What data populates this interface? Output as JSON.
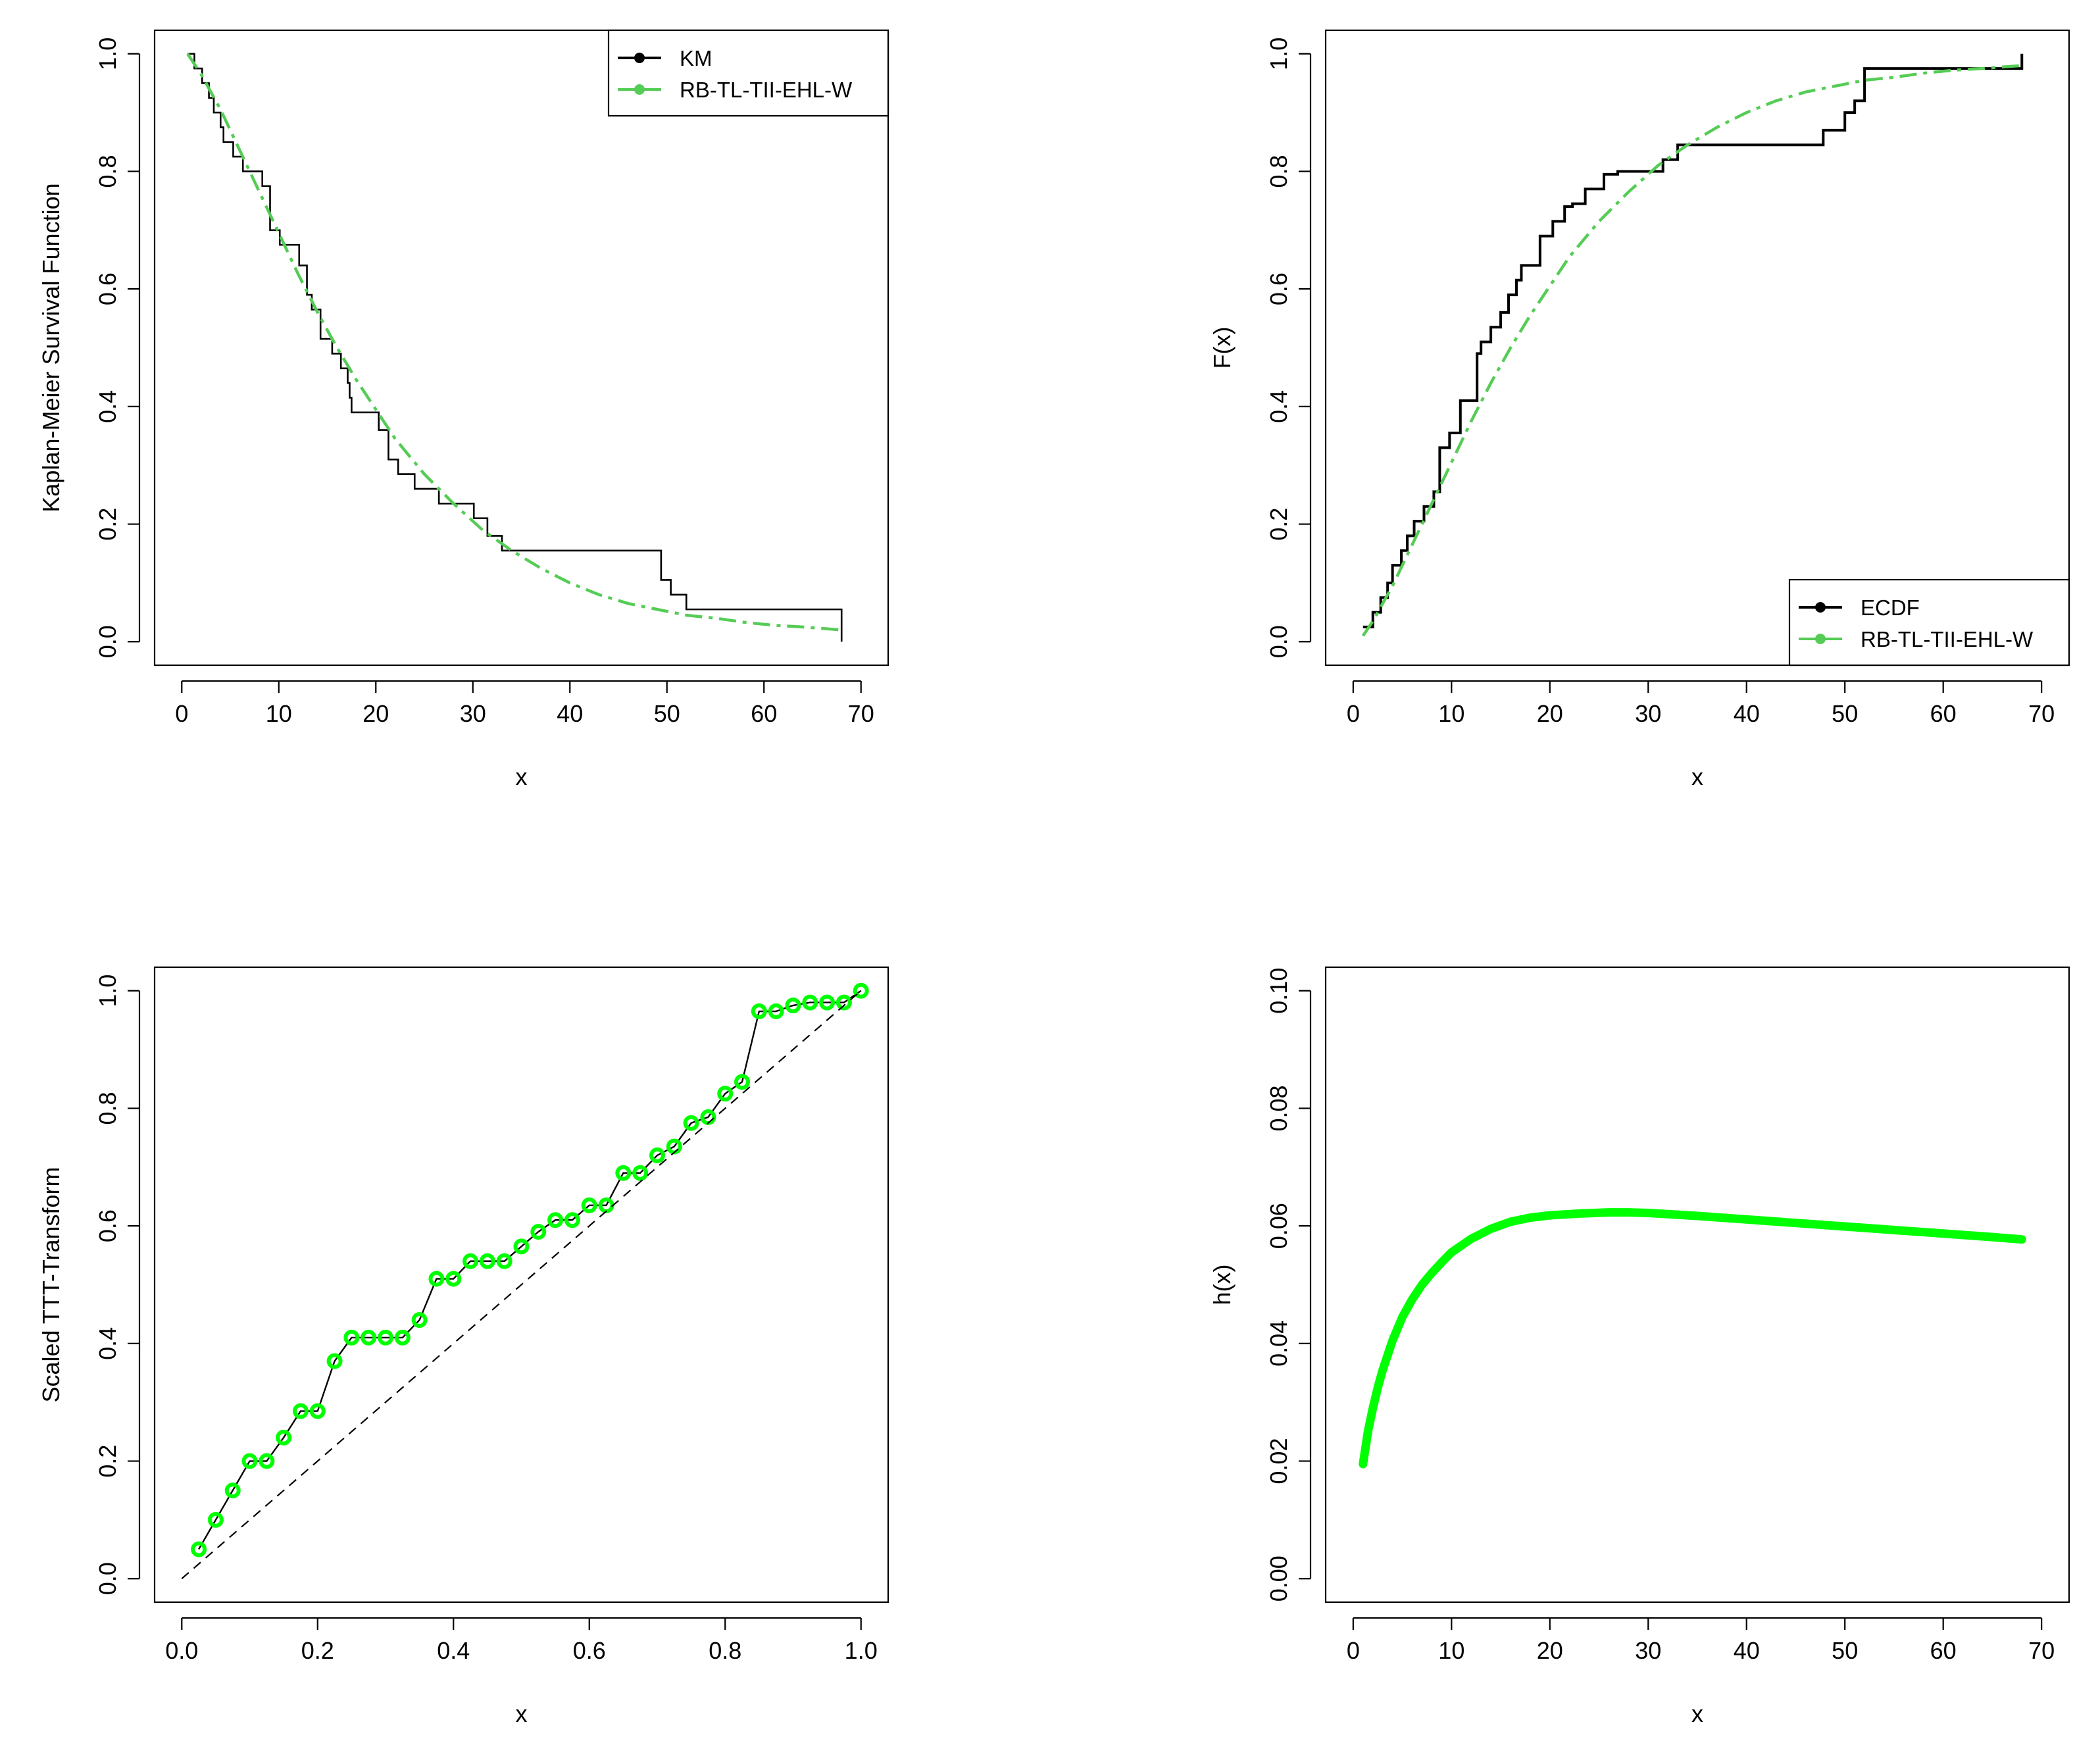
{
  "colors": {
    "black": "#000000",
    "model": "#55cc55",
    "bright_green": "#00ff00"
  },
  "chart_data": [
    {
      "id": "km",
      "type": "line",
      "xlabel": "x",
      "ylabel": "Kaplan-Meier Survival Function",
      "xlim": [
        0,
        70
      ],
      "ylim": [
        0,
        1
      ],
      "xticks": [
        0,
        10,
        20,
        30,
        40,
        50,
        60,
        70
      ],
      "xtick_labels": [
        "0",
        "10",
        "20",
        "30",
        "40",
        "50",
        "60",
        "70"
      ],
      "yticks": [
        0,
        0.2,
        0.4,
        0.6,
        0.8,
        1
      ],
      "ytick_labels": [
        "0.0",
        "0.2",
        "0.4",
        "0.6",
        "0.8",
        "1.0"
      ],
      "legend": {
        "position": "top-right",
        "entries": [
          {
            "label": "KM",
            "color": "#000000",
            "style": "solid-point"
          },
          {
            "label": "RB-TL-TII-EHL-W",
            "color": "#55cc55",
            "style": "solid-point"
          }
        ]
      },
      "series": [
        {
          "name": "KM",
          "kind": "step",
          "color": "#000000",
          "x": [
            0.6,
            1.3,
            2.1,
            2.8,
            3.3,
            4.0,
            4.3,
            5.3,
            6.3,
            8.3,
            9.1,
            10.1,
            12.1,
            12.9,
            13.4,
            14.3,
            15.5,
            16.4,
            17.1,
            17.3,
            17.5,
            20.3,
            21.3,
            22.3,
            24.0,
            26.5,
            30.1,
            31.5,
            33.0,
            48.2,
            49.4,
            50.4,
            52.0,
            68.0
          ],
          "y": [
            1.0,
            0.975,
            0.95,
            0.925,
            0.9,
            0.875,
            0.85,
            0.825,
            0.8,
            0.775,
            0.7,
            0.675,
            0.64,
            0.59,
            0.565,
            0.515,
            0.49,
            0.465,
            0.44,
            0.415,
            0.39,
            0.36,
            0.31,
            0.285,
            0.26,
            0.235,
            0.21,
            0.18,
            0.155,
            0.155,
            0.105,
            0.08,
            0.055,
            0.025
          ],
          "final_drop_to": 0.0
        },
        {
          "name": "RB-TL-TII-EHL-W",
          "kind": "dashdot",
          "color": "#55cc55",
          "x": [
            0.6,
            2,
            4,
            6,
            8,
            10,
            12,
            14,
            16,
            18,
            20,
            22,
            25,
            28,
            31,
            34,
            37,
            40,
            43,
            46,
            49,
            52,
            55,
            58,
            61,
            64,
            68
          ],
          "y": [
            1.0,
            0.965,
            0.905,
            0.835,
            0.765,
            0.695,
            0.625,
            0.56,
            0.5,
            0.445,
            0.395,
            0.345,
            0.285,
            0.235,
            0.19,
            0.155,
            0.125,
            0.1,
            0.08,
            0.065,
            0.055,
            0.045,
            0.04,
            0.033,
            0.028,
            0.025,
            0.02
          ]
        }
      ]
    },
    {
      "id": "ecdf",
      "type": "line",
      "xlabel": "x",
      "ylabel": "F(x)",
      "xlim": [
        0,
        70
      ],
      "ylim": [
        0,
        1
      ],
      "xticks": [
        0,
        10,
        20,
        30,
        40,
        50,
        60,
        70
      ],
      "xtick_labels": [
        "0",
        "10",
        "20",
        "30",
        "40",
        "50",
        "60",
        "70"
      ],
      "yticks": [
        0,
        0.2,
        0.4,
        0.6,
        0.8,
        1
      ],
      "ytick_labels": [
        "0.0",
        "0.2",
        "0.4",
        "0.6",
        "0.8",
        "1.0"
      ],
      "legend": {
        "position": "bottom-right",
        "entries": [
          {
            "label": "ECDF",
            "color": "#000000",
            "style": "solid-point"
          },
          {
            "label": "RB-TL-TII-EHL-W",
            "color": "#55cc55",
            "style": "solid-point"
          }
        ]
      },
      "series": [
        {
          "name": "ECDF",
          "kind": "step",
          "color": "#000000",
          "x": [
            1.0,
            2.0,
            2.8,
            3.5,
            4.0,
            4.9,
            5.5,
            6.2,
            7.2,
            8.2,
            8.8,
            9.8,
            10.9,
            12.6,
            13.0,
            14.0,
            15.0,
            15.8,
            16.6,
            17.1,
            19.0,
            20.3,
            21.5,
            22.3,
            23.6,
            25.5,
            26.9,
            31.5,
            33.0,
            47.8,
            50.0,
            51.0,
            52.0,
            68.0
          ],
          "y": [
            0.025,
            0.05,
            0.075,
            0.1,
            0.13,
            0.155,
            0.18,
            0.205,
            0.23,
            0.255,
            0.33,
            0.355,
            0.41,
            0.49,
            0.51,
            0.535,
            0.56,
            0.59,
            0.615,
            0.64,
            0.69,
            0.715,
            0.74,
            0.745,
            0.77,
            0.795,
            0.8,
            0.82,
            0.845,
            0.87,
            0.9,
            0.92,
            0.975,
            1.0
          ]
        },
        {
          "name": "RB-TL-TII-EHL-W",
          "kind": "dashdot",
          "color": "#55cc55",
          "x": [
            1.0,
            2,
            4,
            6,
            8,
            10,
            12,
            14,
            16,
            18,
            20,
            22,
            25,
            28,
            31,
            34,
            37,
            40,
            43,
            46,
            49,
            52,
            55,
            58,
            61,
            64,
            68
          ],
          "y": [
            0.01,
            0.035,
            0.095,
            0.165,
            0.235,
            0.305,
            0.375,
            0.44,
            0.5,
            0.555,
            0.605,
            0.655,
            0.715,
            0.765,
            0.81,
            0.845,
            0.875,
            0.9,
            0.92,
            0.935,
            0.945,
            0.955,
            0.96,
            0.967,
            0.972,
            0.975,
            0.98
          ]
        }
      ]
    },
    {
      "id": "ttt",
      "type": "line",
      "xlabel": "x",
      "ylabel": "Scaled TTT-Transform",
      "xlim": [
        0,
        1
      ],
      "ylim": [
        0,
        1
      ],
      "xticks": [
        0,
        0.2,
        0.4,
        0.6,
        0.8,
        1
      ],
      "xtick_labels": [
        "0.0",
        "0.2",
        "0.4",
        "0.6",
        "0.8",
        "1.0"
      ],
      "yticks": [
        0,
        0.2,
        0.4,
        0.6,
        0.8,
        1
      ],
      "ytick_labels": [
        "0.0",
        "0.2",
        "0.4",
        "0.6",
        "0.8",
        "1.0"
      ],
      "series": [
        {
          "name": "TTT",
          "kind": "line-points",
          "color": "#000000",
          "point_color": "#00ff00",
          "x": [
            0.025,
            0.05,
            0.075,
            0.1,
            0.125,
            0.15,
            0.175,
            0.2,
            0.225,
            0.25,
            0.275,
            0.3,
            0.325,
            0.35,
            0.375,
            0.4,
            0.425,
            0.45,
            0.475,
            0.5,
            0.525,
            0.55,
            0.575,
            0.6,
            0.625,
            0.65,
            0.675,
            0.7,
            0.725,
            0.75,
            0.775,
            0.8,
            0.825,
            0.85,
            0.875,
            0.9,
            0.925,
            0.95,
            0.975,
            1.0
          ],
          "y": [
            0.05,
            0.1,
            0.15,
            0.2,
            0.2,
            0.24,
            0.285,
            0.285,
            0.37,
            0.41,
            0.41,
            0.41,
            0.41,
            0.44,
            0.51,
            0.51,
            0.54,
            0.54,
            0.54,
            0.565,
            0.59,
            0.61,
            0.61,
            0.635,
            0.635,
            0.69,
            0.69,
            0.72,
            0.735,
            0.775,
            0.785,
            0.825,
            0.845,
            0.965,
            0.965,
            0.975,
            0.98,
            0.98,
            0.98,
            1.0
          ]
        },
        {
          "name": "diagonal",
          "kind": "dashed",
          "color": "#000000",
          "x": [
            0,
            1
          ],
          "y": [
            0,
            1
          ]
        }
      ]
    },
    {
      "id": "hazard",
      "type": "line",
      "xlabel": "x",
      "ylabel": "h(x)",
      "xlim": [
        0,
        70
      ],
      "ylim": [
        0,
        0.1
      ],
      "xticks": [
        0,
        10,
        20,
        30,
        40,
        50,
        60,
        70
      ],
      "xtick_labels": [
        "0",
        "10",
        "20",
        "30",
        "40",
        "50",
        "60",
        "70"
      ],
      "yticks": [
        0,
        0.02,
        0.04,
        0.06,
        0.08,
        0.1
      ],
      "ytick_labels": [
        "0.00",
        "0.02",
        "0.04",
        "0.06",
        "0.08",
        "0.10"
      ],
      "series": [
        {
          "name": "h(x)",
          "kind": "thick",
          "color": "#00ff00",
          "x": [
            1,
            1.5,
            2,
            2.5,
            3,
            4,
            5,
            6,
            7,
            8,
            9,
            10,
            12,
            14,
            16,
            18,
            20,
            23,
            26,
            28,
            30,
            35,
            40,
            45,
            50,
            55,
            60,
            65,
            68
          ],
          "y": [
            0.0195,
            0.025,
            0.029,
            0.0325,
            0.0355,
            0.0405,
            0.0445,
            0.0475,
            0.05,
            0.052,
            0.0538,
            0.0555,
            0.0578,
            0.0595,
            0.0607,
            0.0614,
            0.0618,
            0.0621,
            0.0623,
            0.0623,
            0.0622,
            0.0617,
            0.0611,
            0.0605,
            0.0599,
            0.0593,
            0.0587,
            0.0581,
            0.0577
          ]
        }
      ]
    }
  ]
}
